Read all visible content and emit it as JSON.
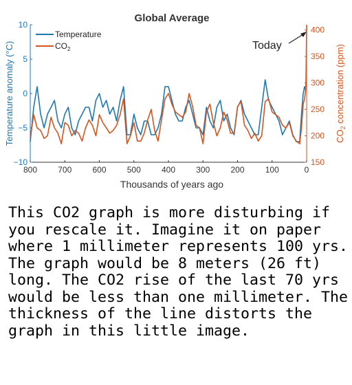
{
  "chart_data": {
    "type": "line",
    "title": "Global Average",
    "xlabel": "Thousands of years ago",
    "ylabel_left": "Temperature anomaly (°C)",
    "ylabel_right": "CO2 concentration (ppm)",
    "xlim": [
      800,
      0
    ],
    "ylim_left": [
      -10,
      10
    ],
    "ylim_right": [
      150,
      410
    ],
    "x_ticks": [
      800,
      700,
      600,
      500,
      400,
      300,
      200,
      100,
      0
    ],
    "y_ticks_left": [
      10,
      5,
      0,
      -5,
      -10
    ],
    "y_ticks_right": [
      400,
      350,
      300,
      250,
      200,
      150
    ],
    "legend_position": "top-left",
    "annotation": "Today",
    "colors": {
      "temperature": "#1f77b4",
      "co2": "#d4551f",
      "axis_right": "#d4551f",
      "axis_left": "#1f77b4"
    },
    "series": [
      {
        "name": "Temperature",
        "axis": "left",
        "x": [
          800,
          790,
          780,
          770,
          760,
          750,
          740,
          730,
          720,
          710,
          700,
          690,
          680,
          670,
          660,
          650,
          640,
          630,
          620,
          610,
          600,
          590,
          580,
          570,
          560,
          550,
          540,
          530,
          520,
          510,
          500,
          490,
          480,
          470,
          460,
          450,
          440,
          430,
          420,
          410,
          400,
          390,
          380,
          370,
          360,
          350,
          340,
          330,
          320,
          310,
          300,
          290,
          280,
          270,
          260,
          250,
          240,
          230,
          220,
          210,
          200,
          190,
          180,
          170,
          160,
          150,
          140,
          130,
          120,
          110,
          100,
          90,
          80,
          70,
          60,
          50,
          40,
          30,
          20,
          15,
          10,
          6,
          3,
          0
        ],
        "values": [
          -7,
          -2,
          1,
          -3,
          -5,
          -3,
          -2,
          -1,
          -4,
          -5,
          -3,
          -2,
          -5,
          -6,
          -4,
          -3,
          -2,
          -2,
          -4,
          -1,
          0,
          -2,
          -1,
          -3,
          -2,
          -4,
          -1,
          1,
          -6,
          -6,
          -3,
          -5,
          -6,
          -4,
          -4,
          -6,
          -6,
          -5,
          -3,
          1,
          1,
          -1,
          -3,
          -4,
          -4,
          -2,
          -1,
          -3,
          -5,
          -5,
          -6,
          -2,
          -4,
          -5,
          -2,
          -1,
          -4,
          -3,
          -5,
          -6,
          -2,
          -1,
          -3,
          -4,
          -5,
          -6,
          -6,
          -2,
          2,
          -1,
          -2,
          -3,
          -4,
          -6,
          -5,
          -4,
          -6,
          -7,
          -7,
          -3,
          0,
          1,
          0.5,
          0.5
        ]
      },
      {
        "name": "CO2",
        "axis": "right",
        "x": [
          800,
          790,
          780,
          770,
          760,
          750,
          740,
          730,
          720,
          710,
          700,
          690,
          680,
          670,
          660,
          650,
          640,
          630,
          620,
          610,
          600,
          590,
          580,
          570,
          560,
          550,
          540,
          530,
          520,
          510,
          500,
          490,
          480,
          470,
          460,
          450,
          440,
          430,
          420,
          410,
          400,
          390,
          380,
          370,
          360,
          350,
          340,
          330,
          320,
          310,
          300,
          290,
          280,
          270,
          260,
          250,
          240,
          230,
          220,
          210,
          200,
          190,
          180,
          170,
          160,
          150,
          140,
          130,
          120,
          110,
          100,
          90,
          80,
          70,
          60,
          50,
          40,
          30,
          20,
          15,
          10,
          6,
          4,
          2,
          1,
          0
        ],
        "values": [
          195,
          240,
          215,
          210,
          195,
          200,
          235,
          215,
          205,
          185,
          225,
          220,
          200,
          210,
          205,
          190,
          215,
          230,
          220,
          200,
          240,
          225,
          215,
          205,
          210,
          220,
          240,
          270,
          185,
          200,
          225,
          190,
          190,
          205,
          230,
          250,
          210,
          190,
          230,
          270,
          280,
          260,
          245,
          240,
          235,
          245,
          280,
          255,
          220,
          215,
          185,
          245,
          260,
          225,
          200,
          215,
          245,
          230,
          205,
          205,
          255,
          265,
          220,
          210,
          195,
          205,
          190,
          200,
          265,
          270,
          245,
          240,
          235,
          220,
          215,
          225,
          200,
          190,
          185,
          215,
          260,
          270,
          280,
          300,
          350,
          410
        ]
      }
    ]
  },
  "caption": "This CO2 graph is more disturbing if you rescale it. Imagine it on paper where 1 millimeter represents 100 yrs. The graph would be 8 meters (26 ft) long. The CO2 rise of the last 70 yrs would be less than one millimeter. The thickness of the line distorts the graph in this little image."
}
